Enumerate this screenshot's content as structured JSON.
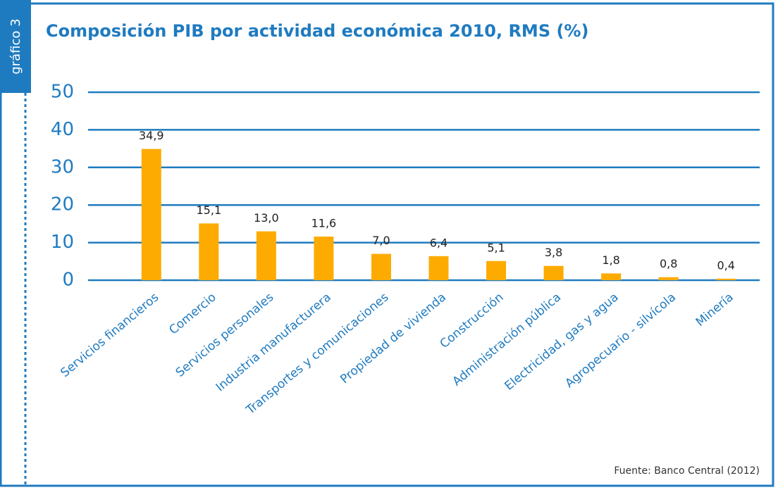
{
  "side_label": "gráfico 3",
  "chart_data": {
    "type": "bar",
    "title": "Composición PIB por actividad económica 2010, RMS (%)",
    "categories": [
      "Servicios financieros",
      "Comercio",
      "Servicios personales",
      "Industria manufacturera",
      "Transportes y comunicaciones",
      "Propiedad de vivienda",
      "Construcción",
      "Administración pública",
      "Electricidad, gas y agua",
      "Agropecuario - silvícola",
      "Minería"
    ],
    "values": [
      34.9,
      15.1,
      13.0,
      11.6,
      7.0,
      6.4,
      5.1,
      3.8,
      1.8,
      0.8,
      0.4
    ],
    "value_labels": [
      "34,9",
      "15,1",
      "13,0",
      "11,6",
      "7,0",
      "6,4",
      "5,1",
      "3,8",
      "1,8",
      "0,8",
      "0,4"
    ],
    "color": "#fdab00",
    "ylim": [
      0,
      50
    ],
    "yticks": [
      0,
      10,
      20,
      30,
      40,
      50
    ],
    "grid": true,
    "source": "Fuente:  Banco Central (2012)"
  }
}
